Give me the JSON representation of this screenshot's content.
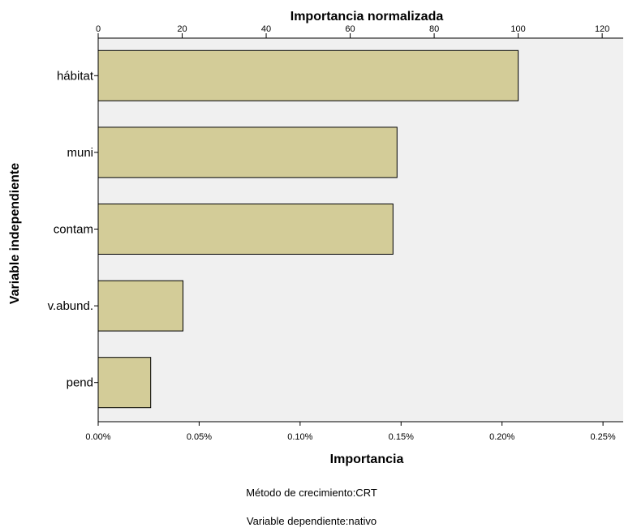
{
  "chart_data": {
    "type": "bar",
    "orientation": "horizontal",
    "title": "Importancia normalizada",
    "xlabel": "Importancia",
    "ylabel": "Variable independiente",
    "categories": [
      "hábitat",
      "muni",
      "contam",
      "v.abund.",
      "pend"
    ],
    "values": [
      0.00208,
      0.00148,
      0.00146,
      0.00042,
      0.00026
    ],
    "normalized_values": [
      100,
      71.2,
      70.2,
      20.2,
      12.5
    ],
    "xlim": [
      0,
      0.0026
    ],
    "x_ticks": [
      0,
      0.0005,
      0.001,
      0.0015,
      0.002,
      0.0025
    ],
    "x_tick_labels": [
      "0.00%",
      "0.05%",
      "0.10%",
      "0.15%",
      "0.20%",
      "0.25%"
    ],
    "top_axis_ticks": [
      0,
      20,
      40,
      60,
      80,
      100,
      120
    ],
    "top_axis_tick_labels": [
      "0",
      "20",
      "40",
      "60",
      "80",
      "100",
      "120"
    ],
    "grid": false,
    "legend": "none",
    "bar_color": "#d3cc98",
    "plot_background": "#f0f0f0"
  },
  "footnotes": [
    "Método de crecimiento:CRT",
    "Variable dependiente:nativo"
  ]
}
